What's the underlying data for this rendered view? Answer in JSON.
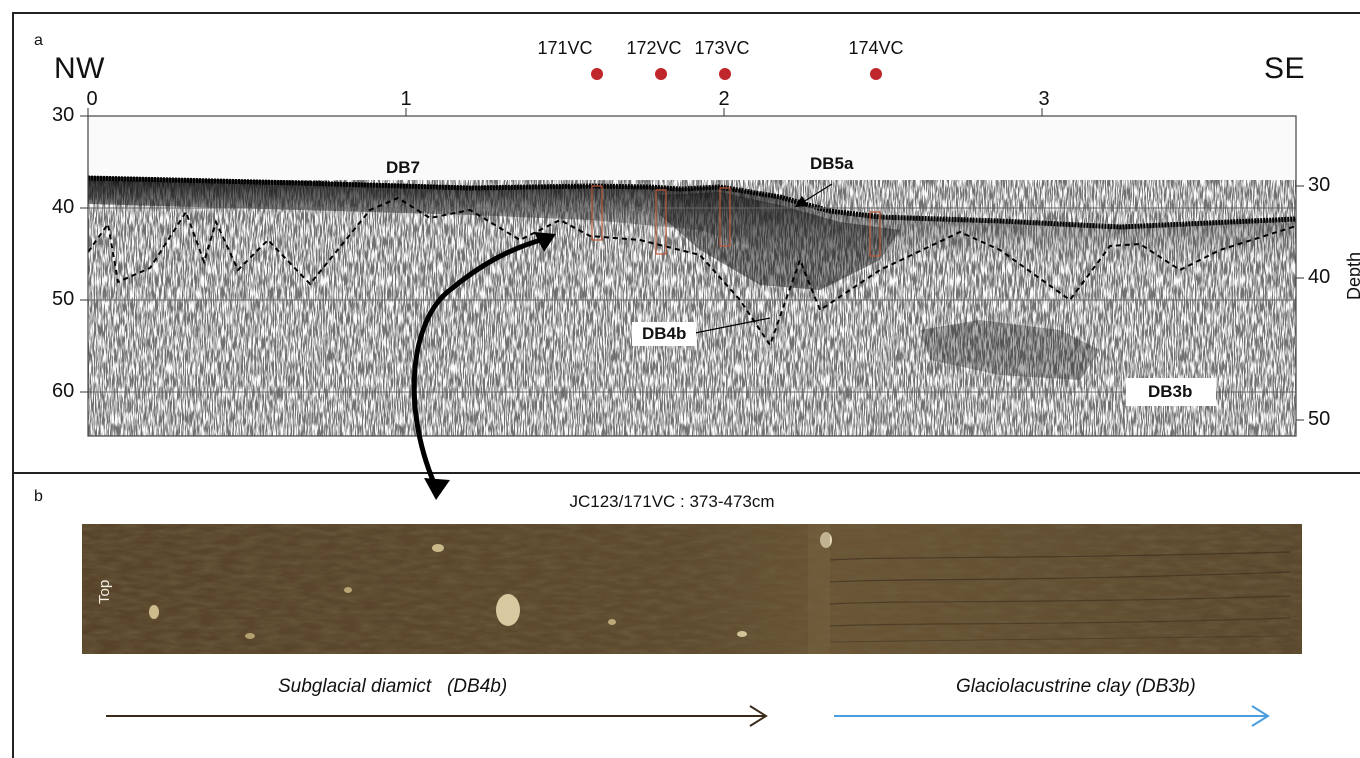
{
  "panel_a": {
    "letter": "a",
    "left_direction": "NW",
    "right_direction": "SE",
    "x_ticks": [
      "0",
      "1",
      "2",
      "3"
    ],
    "left_ticks": [
      "30",
      "40",
      "50",
      "60"
    ],
    "right_ticks": [
      "30",
      "40",
      "50"
    ],
    "right_axis_label": "Depth (m)",
    "cores": [
      "171VC",
      "172VC",
      "173VC",
      "174VC"
    ],
    "core_marker_color": "#c0272d",
    "units": {
      "db7": "DB7",
      "db5a": "DB5a",
      "db4b": "DB4b",
      "db3b": "DB3b"
    }
  },
  "panel_b": {
    "letter": "b",
    "core_title": "JC123/171VC : 373-473cm",
    "top_label": "Top",
    "legend": {
      "left": "Subglacial diamict   (DB4b)",
      "left_color": "#3b2a1a",
      "right": "Glaciolacustrine clay (DB3b)",
      "right_color": "#4a9ee0"
    }
  }
}
